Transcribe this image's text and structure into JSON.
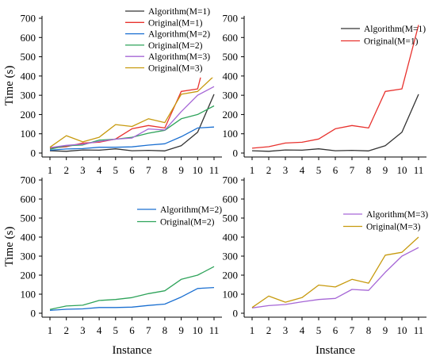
{
  "chart_data": [
    {
      "type": "line",
      "x": [
        1,
        2,
        3,
        4,
        5,
        6,
        7,
        8,
        9,
        10,
        11
      ],
      "xlabel": "",
      "ylabel": "Time (s)",
      "ylim": [
        0,
        700
      ],
      "yticks": [
        0,
        100,
        200,
        300,
        400,
        500,
        600,
        700
      ],
      "legend": "top-left",
      "series": [
        {
          "name": "Algorithm(M=1)",
          "color": "#333333",
          "values": [
            12,
            9,
            16,
            15,
            22,
            12,
            14,
            11,
            38,
            108,
            305
          ]
        },
        {
          "name": "Original(M=1)",
          "color": "#e8322e",
          "values": [
            25,
            33,
            52,
            56,
            73,
            126,
            143,
            130,
            320,
            333,
            665
          ]
        },
        {
          "name": "Algorithm(M=2)",
          "color": "#1a6fd1",
          "values": [
            15,
            21,
            23,
            30,
            30,
            32,
            41,
            48,
            85,
            130,
            135
          ]
        },
        {
          "name": "Original(M=2)",
          "color": "#2ea35a",
          "values": [
            20,
            38,
            42,
            67,
            72,
            82,
            103,
            118,
            178,
            200,
            245
          ]
        },
        {
          "name": "Algorithm(M=3)",
          "color": "#a667d6",
          "values": [
            28,
            40,
            46,
            60,
            72,
            78,
            125,
            120,
            215,
            300,
            345
          ]
        },
        {
          "name": "Original(M=3)",
          "color": "#c79a0e",
          "values": [
            30,
            90,
            58,
            82,
            148,
            138,
            178,
            158,
            305,
            320,
            400
          ]
        }
      ]
    },
    {
      "type": "line",
      "x": [
        1,
        2,
        3,
        4,
        5,
        6,
        7,
        8,
        9,
        10,
        11
      ],
      "xlabel": "",
      "ylabel": "",
      "ylim": [
        0,
        700
      ],
      "yticks": [
        0,
        100,
        200,
        300,
        400,
        500,
        600,
        700
      ],
      "legend": "top-right",
      "series": [
        {
          "name": "Algorithm(M=1)",
          "color": "#333333",
          "values": [
            12,
            9,
            16,
            15,
            22,
            12,
            14,
            11,
            38,
            108,
            305
          ]
        },
        {
          "name": "Original(M=1)",
          "color": "#e8322e",
          "values": [
            25,
            33,
            52,
            56,
            73,
            126,
            143,
            130,
            320,
            333,
            665
          ]
        }
      ]
    },
    {
      "type": "line",
      "x": [
        1,
        2,
        3,
        4,
        5,
        6,
        7,
        8,
        9,
        10,
        11
      ],
      "xlabel": "Instance",
      "ylabel": "Time (s)",
      "ylim": [
        0,
        700
      ],
      "yticks": [
        0,
        100,
        200,
        300,
        400,
        500,
        600,
        700
      ],
      "legend": "top-right",
      "series": [
        {
          "name": "Algorithm(M=2)",
          "color": "#1a6fd1",
          "values": [
            15,
            21,
            23,
            30,
            30,
            32,
            41,
            48,
            85,
            130,
            135
          ]
        },
        {
          "name": "Original(M=2)",
          "color": "#2ea35a",
          "values": [
            20,
            38,
            42,
            67,
            72,
            82,
            103,
            118,
            178,
            200,
            245
          ]
        }
      ]
    },
    {
      "type": "line",
      "x": [
        1,
        2,
        3,
        4,
        5,
        6,
        7,
        8,
        9,
        10,
        11
      ],
      "xlabel": "Instance",
      "ylabel": "",
      "ylim": [
        0,
        700
      ],
      "yticks": [
        0,
        100,
        200,
        300,
        400,
        500,
        600,
        700
      ],
      "legend": "top-right",
      "series": [
        {
          "name": "Algorithm(M=3)",
          "color": "#a667d6",
          "values": [
            28,
            40,
            46,
            60,
            72,
            78,
            125,
            120,
            215,
            300,
            345
          ]
        },
        {
          "name": "Original(M=3)",
          "color": "#c79a0e",
          "values": [
            30,
            90,
            58,
            82,
            148,
            138,
            178,
            158,
            305,
            320,
            400
          ]
        }
      ]
    }
  ]
}
